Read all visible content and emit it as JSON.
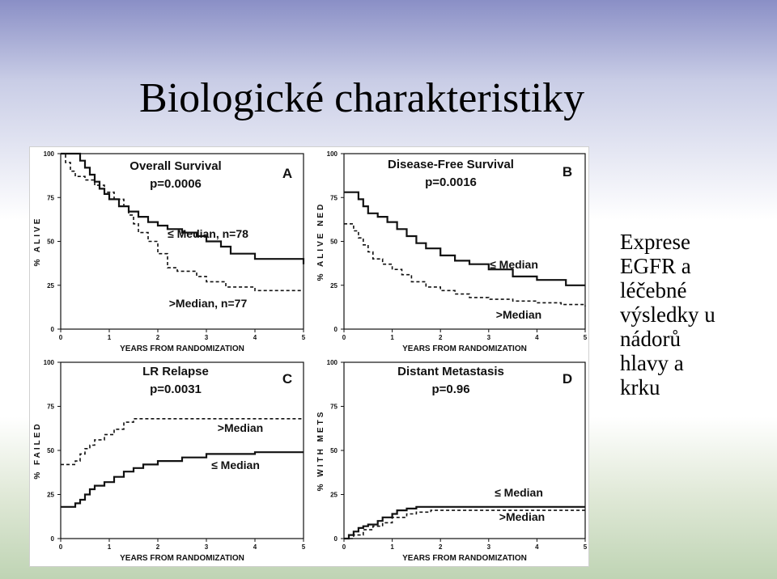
{
  "slide": {
    "title": "Biologické charakteristiky",
    "side_text": [
      "Exprese",
      "EGFR a",
      "léčebné",
      "výsledky u",
      "nádorů",
      "hlavy a",
      "krku"
    ]
  },
  "colors": {
    "line": "#111111",
    "background_top": "#8a8fc6"
  },
  "chart_data": [
    {
      "type": "line",
      "panel": "A",
      "title": "Overall Survival",
      "subtitle": "p=0.0006",
      "xlabel": "YEARS FROM RANDOMIZATION",
      "ylabel": "% ALIVE",
      "xlim": [
        0,
        5
      ],
      "ylim": [
        0,
        100
      ],
      "xticks": [
        0,
        1,
        2,
        3,
        4,
        5
      ],
      "yticks": [
        0,
        25,
        50,
        75,
        100
      ],
      "series": [
        {
          "name": "≤ Median, n=78",
          "style": "solid",
          "x": [
            0,
            0.3,
            0.4,
            0.5,
            0.6,
            0.7,
            0.8,
            0.9,
            1.0,
            1.2,
            1.4,
            1.6,
            1.8,
            2.0,
            2.2,
            2.5,
            2.8,
            3.0,
            3.3,
            3.5,
            4.0,
            5.0
          ],
          "y": [
            100,
            100,
            96,
            92,
            88,
            84,
            80,
            77,
            74,
            70,
            67,
            64,
            61,
            59,
            57,
            55,
            53,
            50,
            47,
            43,
            40,
            37
          ]
        },
        {
          "name": ">Median, n=77",
          "style": "dashed",
          "x": [
            0,
            0.1,
            0.2,
            0.3,
            0.5,
            0.7,
            0.9,
            1.1,
            1.3,
            1.4,
            1.5,
            1.6,
            1.8,
            2.0,
            2.2,
            2.4,
            2.8,
            3.0,
            3.4,
            4.0,
            5.0
          ],
          "y": [
            100,
            95,
            90,
            87,
            85,
            82,
            78,
            74,
            70,
            65,
            60,
            55,
            50,
            43,
            35,
            33,
            30,
            27,
            24,
            22,
            22
          ]
        }
      ]
    },
    {
      "type": "line",
      "panel": "B",
      "title": "Disease-Free Survival",
      "subtitle": "p=0.0016",
      "xlabel": "YEARS FROM RANDOMIZATION",
      "ylabel": "% ALIVE NED",
      "xlim": [
        0,
        5
      ],
      "ylim": [
        0,
        100
      ],
      "xticks": [
        0,
        1,
        2,
        3,
        4,
        5
      ],
      "yticks": [
        0,
        25,
        50,
        75,
        100
      ],
      "series": [
        {
          "name": "≤ Median",
          "style": "solid",
          "x": [
            0,
            0.3,
            0.4,
            0.5,
            0.7,
            0.9,
            1.1,
            1.3,
            1.5,
            1.7,
            2.0,
            2.3,
            2.6,
            3.0,
            3.5,
            4.0,
            4.6,
            5.0
          ],
          "y": [
            78,
            74,
            70,
            66,
            64,
            61,
            57,
            53,
            49,
            46,
            42,
            39,
            37,
            34,
            30,
            28,
            25,
            25
          ]
        },
        {
          "name": ">Median",
          "style": "dashed",
          "x": [
            0,
            0.2,
            0.3,
            0.4,
            0.5,
            0.6,
            0.8,
            1.0,
            1.2,
            1.4,
            1.7,
            2.0,
            2.3,
            2.6,
            3.0,
            3.5,
            4.0,
            4.5,
            5.0
          ],
          "y": [
            60,
            56,
            52,
            48,
            44,
            40,
            37,
            34,
            31,
            27,
            24,
            22,
            20,
            18,
            17,
            16,
            15,
            14,
            13
          ]
        }
      ]
    },
    {
      "type": "line",
      "panel": "C",
      "title": "LR Relapse",
      "subtitle": "p=0.0031",
      "xlabel": "YEARS FROM RANDOMIZATION",
      "ylabel": "% FAILED",
      "xlim": [
        0,
        5
      ],
      "ylim": [
        0,
        100
      ],
      "xticks": [
        0,
        1,
        2,
        3,
        4,
        5
      ],
      "yticks": [
        0,
        25,
        50,
        75,
        100
      ],
      "series": [
        {
          "name": ">Median",
          "style": "dashed",
          "x": [
            0,
            0.3,
            0.4,
            0.5,
            0.6,
            0.7,
            0.9,
            1.1,
            1.3,
            1.5,
            5.0
          ],
          "y": [
            42,
            44,
            48,
            51,
            53,
            56,
            59,
            62,
            66,
            68,
            68
          ]
        },
        {
          "name": "≤ Median",
          "style": "solid",
          "x": [
            0,
            0.3,
            0.4,
            0.5,
            0.6,
            0.7,
            0.9,
            1.1,
            1.3,
            1.5,
            1.7,
            2.0,
            2.5,
            3.0,
            4.0,
            5.0
          ],
          "y": [
            18,
            20,
            22,
            25,
            28,
            30,
            32,
            35,
            38,
            40,
            42,
            44,
            46,
            48,
            49,
            49
          ]
        }
      ]
    },
    {
      "type": "line",
      "panel": "D",
      "title": "Distant Metastasis",
      "subtitle": "p=0.96",
      "xlabel": "YEARS FROM RANDOMIZATION",
      "ylabel": "% WITH METS",
      "xlim": [
        0,
        5
      ],
      "ylim": [
        0,
        100
      ],
      "xticks": [
        0,
        1,
        2,
        3,
        4,
        5
      ],
      "yticks": [
        0,
        25,
        50,
        75,
        100
      ],
      "series": [
        {
          "name": "≤ Median",
          "style": "solid",
          "x": [
            0,
            0.1,
            0.2,
            0.3,
            0.4,
            0.5,
            0.7,
            0.8,
            1.0,
            1.1,
            1.3,
            1.5,
            2.0,
            5.0
          ],
          "y": [
            0,
            2,
            4,
            6,
            7,
            8,
            10,
            12,
            14,
            16,
            17,
            18,
            18,
            18
          ]
        },
        {
          "name": ">Median",
          "style": "dashed",
          "x": [
            0,
            0.2,
            0.4,
            0.6,
            0.8,
            1.0,
            1.3,
            1.5,
            1.8,
            5.0
          ],
          "y": [
            0,
            2,
            5,
            7,
            9,
            12,
            14,
            15,
            16,
            16
          ]
        }
      ]
    }
  ]
}
